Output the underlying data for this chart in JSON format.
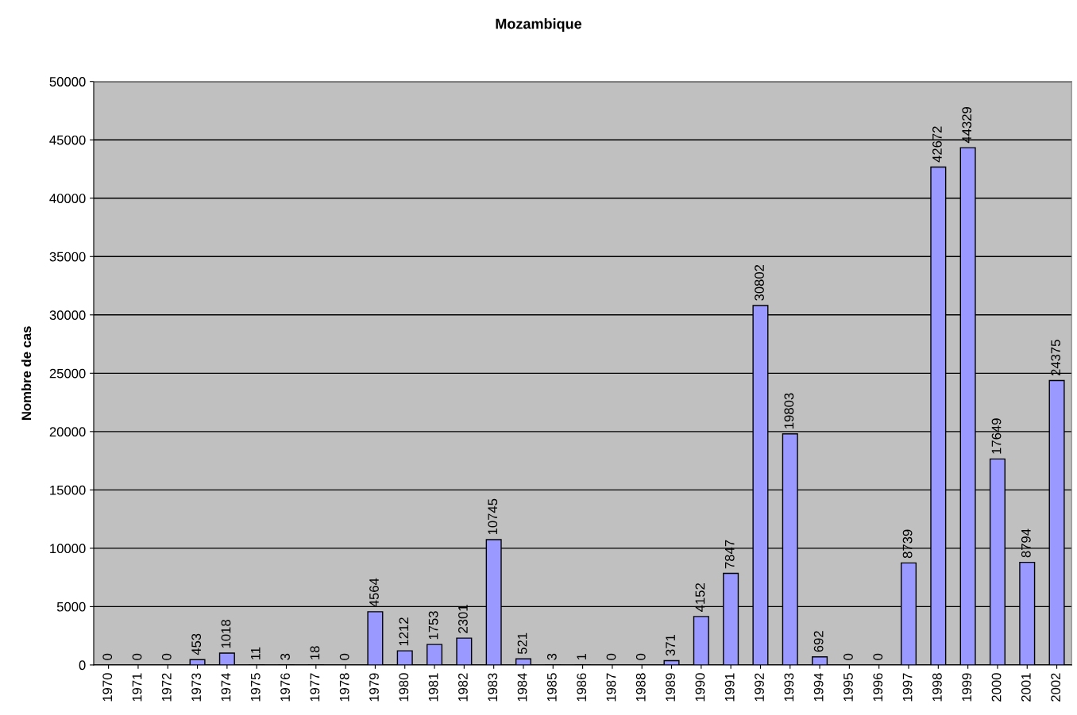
{
  "chart_data": {
    "type": "bar",
    "title": "Mozambique",
    "ylabel": "Nombre de cas",
    "categories": [
      "1970",
      "1971",
      "1972",
      "1973",
      "1974",
      "1975",
      "1976",
      "1977",
      "1978",
      "1979",
      "1980",
      "1981",
      "1982",
      "1983",
      "1984",
      "1985",
      "1986",
      "1987",
      "1988",
      "1989",
      "1990",
      "1991",
      "1992",
      "1993",
      "1994",
      "1995",
      "1996",
      "1997",
      "1998",
      "1999",
      "2000",
      "2001",
      "2002"
    ],
    "values": [
      0,
      0,
      0,
      453,
      1018,
      11,
      3,
      18,
      0,
      4564,
      1212,
      1753,
      2301,
      10745,
      521,
      3,
      1,
      0,
      0,
      371,
      4152,
      7847,
      30802,
      19803,
      692,
      0,
      0,
      8739,
      42672,
      44329,
      17649,
      8794,
      24375
    ],
    "color": "#9999ff",
    "ylim": [
      0,
      50000
    ],
    "yticks": [
      0,
      5000,
      10000,
      15000,
      20000,
      25000,
      30000,
      35000,
      40000,
      45000,
      50000
    ],
    "grid": "y",
    "data_labels": true,
    "legend": false
  }
}
